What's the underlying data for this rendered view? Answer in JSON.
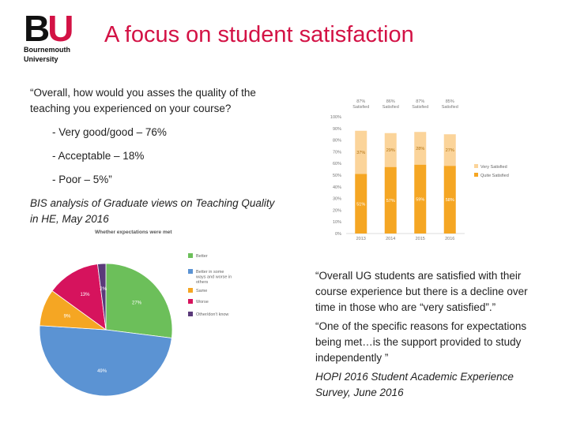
{
  "logo": {
    "mark_b": "B",
    "mark_u": "U",
    "line1": "Bournemouth",
    "line2": "University"
  },
  "title": "A focus on student satisfaction",
  "left": {
    "quote": "“Overall, how would you asses the quality of the teaching you experienced on your course?",
    "bullets": [
      "-   Very good/good – 76%",
      "-   Acceptable – 18%",
      "-   Poor – 5%”"
    ],
    "source": "BIS analysis of Graduate views on Teaching Quality in HE, May 2016"
  },
  "right": {
    "quote1": "“Overall UG students are satisfied with their course experience but there is a decline over time in those who are “very satisfied”.”",
    "quote2": "“One of the specific reasons for expectations being met…is the support provided to study independently ”",
    "source": "HOPI 2016 Student Academic Experience Survey,  June 2016"
  },
  "chart_data": [
    {
      "type": "bar",
      "stacked": true,
      "categories": [
        "2013",
        "2014",
        "2015",
        "2016"
      ],
      "top_labels": [
        "87%\nSatisfied",
        "86%\nSatisfied",
        "87%\nSatisfied",
        "85%\nSatisfied"
      ],
      "series": [
        {
          "name": "Quite Satisfied",
          "values": [
            51,
            57,
            59,
            58
          ],
          "color": "#f5a623"
        },
        {
          "name": "Very Satisfied",
          "values": [
            37,
            29,
            28,
            27
          ],
          "color": "#fbd49a"
        }
      ],
      "y_ticks": [
        "0%",
        "10%",
        "20%",
        "30%",
        "40%",
        "50%",
        "60%",
        "70%",
        "80%",
        "90%",
        "100%"
      ],
      "ylim": [
        0,
        100
      ],
      "legend": "right"
    },
    {
      "type": "pie",
      "title": "Whether expectations were met",
      "slices": [
        {
          "name": "Better",
          "value": 27,
          "label": "27%",
          "color": "#6cbf5a"
        },
        {
          "name": "Better in some ways and worse in others",
          "value": 49,
          "label": "49%",
          "color": "#5b93d3"
        },
        {
          "name": "Same",
          "value": 9,
          "label": "9%",
          "color": "#f5a623"
        },
        {
          "name": "Worse",
          "value": 13,
          "label": "13%",
          "color": "#d6135d"
        },
        {
          "name": "Other/don't know",
          "value": 2,
          "label": "2%",
          "color": "#5a3a7a"
        }
      ],
      "legend": "right"
    }
  ]
}
